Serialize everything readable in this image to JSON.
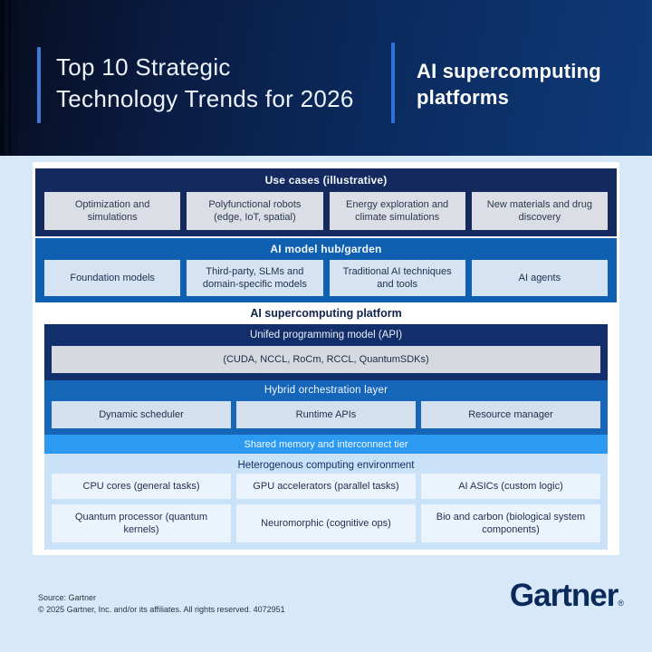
{
  "header": {
    "title_line1": "Top 10 Strategic",
    "title_line2": "Technology Trends for 2026",
    "subtitle_line1": "AI supercomputing",
    "subtitle_line2": "platforms"
  },
  "diagram": {
    "use_cases": {
      "title": "Use cases (illustrative)",
      "items": [
        "Optimization and simulations",
        "Polyfunctional robots (edge, IoT, spatial)",
        "Energy exploration and climate simulations",
        "New materials and drug discovery"
      ]
    },
    "model_hub": {
      "title": "AI model hub/garden",
      "items": [
        "Foundation models",
        "Third-party, SLMs and domain-specific models",
        "Traditional AI techniques and tools",
        "AI agents"
      ]
    },
    "platform": {
      "title": "AI supercomputing platform",
      "unified_api": {
        "title": "Unifed programming model (API)",
        "detail": "(CUDA, NCCL, RoCm, RCCL, QuantumSDKs)"
      },
      "orchestration": {
        "title": "Hybrid orchestration layer",
        "items": [
          "Dynamic scheduler",
          "Runtime APIs",
          "Resource manager"
        ]
      },
      "interconnect": {
        "title": "Shared memory and interconnect tier"
      },
      "heterogenous": {
        "title": "Heterogenous computing environment",
        "row1": [
          "CPU cores (general tasks)",
          "GPU accelerators (parallel tasks)",
          "AI ASICs (custom logic)"
        ],
        "row2": [
          "Quantum processor (quantum kernels)",
          "Neuromorphic (cognitive ops)",
          "Bio and carbon (biological system components)"
        ]
      }
    }
  },
  "footer": {
    "source": "Source: Gartner",
    "copyright": "© 2025 Gartner, Inc. and/or its affiliates. All rights reserved. 4072951",
    "logo": "Gartner",
    "registered": "®"
  },
  "colors": {
    "page_background": "#d7e9f9",
    "banner_navy_dark": "#070d20",
    "banner_navy_light": "#0e3a78",
    "accent_blue": "#2e72d8",
    "band_navy": "#14295e",
    "band_blue": "#1060b2",
    "platform_navy": "#122f6b",
    "orchestration_blue": "#1565b8",
    "interconnect_blue": "#2d9af2",
    "hetero_light_blue": "#c9e2f8",
    "box_gray": "#dbdee4",
    "box_light_blue": "#d6e3f2",
    "logo_navy": "#0b2a5c"
  }
}
